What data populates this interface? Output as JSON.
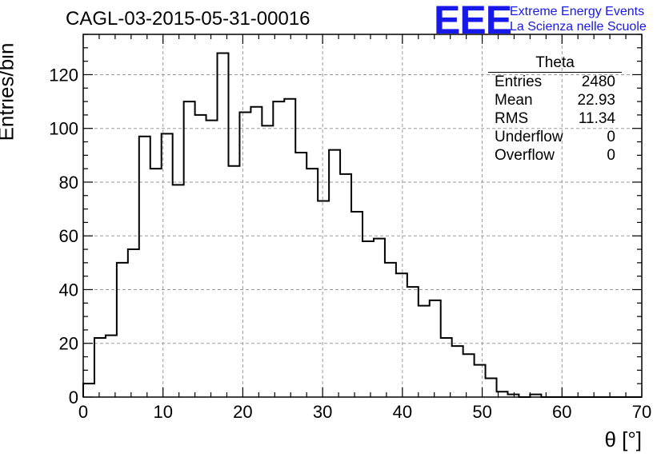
{
  "title": "CAGL-03-2015-05-31-00016",
  "logo": {
    "mark": "EEE",
    "line1": "Extreme Energy Events",
    "line2": "La Scienza nelle Scuole",
    "color": "#1818e8"
  },
  "stats": {
    "name": "Theta",
    "rows": [
      {
        "label": "Entries",
        "value": "2480"
      },
      {
        "label": "Mean",
        "value": "22.93"
      },
      {
        "label": "RMS",
        "value": "11.34"
      },
      {
        "label": "Underflow",
        "value": "0"
      },
      {
        "label": "Overflow",
        "value": "0"
      }
    ]
  },
  "chart_data": {
    "type": "bar",
    "title": "CAGL-03-2015-05-31-00016",
    "xlabel": "θ [°]",
    "ylabel": "Entries/bin",
    "xlim": [
      0,
      70
    ],
    "ylim": [
      0,
      135
    ],
    "grid": true,
    "bin_width": 1.4,
    "xticks": [
      0,
      10,
      20,
      30,
      40,
      50,
      60,
      70
    ],
    "yticks": [
      0,
      20,
      40,
      60,
      80,
      100,
      120
    ],
    "values": [
      5,
      22,
      23,
      50,
      55,
      97,
      85,
      98,
      79,
      110,
      105,
      103,
      128,
      86,
      106,
      108,
      101,
      110,
      111,
      91,
      85,
      73,
      92,
      83,
      69,
      58,
      59,
      50,
      46,
      41,
      34,
      36,
      22,
      19,
      16,
      12,
      7,
      2,
      1,
      0,
      1,
      0,
      0,
      0,
      0,
      0,
      0,
      0,
      0,
      0
    ]
  }
}
